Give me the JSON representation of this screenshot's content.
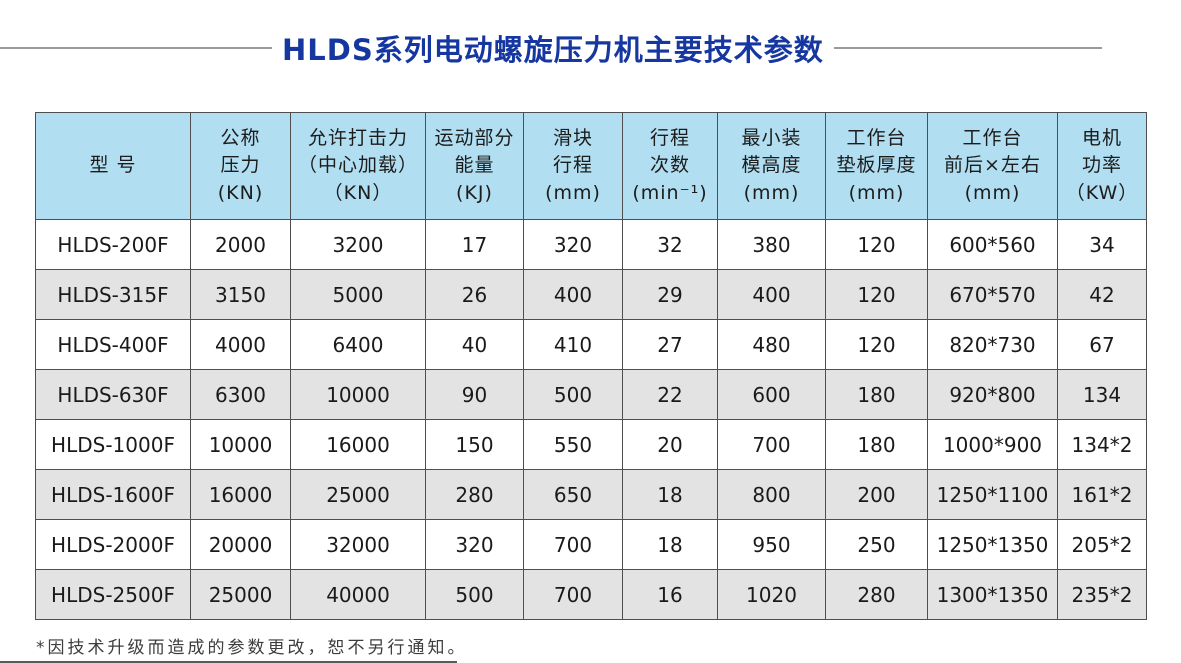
{
  "page": {
    "title": "HLDS系列电动螺旋压力机主要技术参数",
    "footnote": "*因技术升级而造成的参数更改，恕不另行通知。"
  },
  "colors": {
    "title_blue": "#1637a0",
    "header_bg": "#b1def1",
    "row_alt_bg": "#e3e3e3",
    "border": "#4f4f4f",
    "divider_gray": "#9a9a9a"
  },
  "table": {
    "headers": [
      {
        "id": "model",
        "lines": [
          "型 号"
        ]
      },
      {
        "id": "nominal-pressure",
        "lines": [
          "公称",
          "压力",
          "(KN)"
        ]
      },
      {
        "id": "striking-force",
        "lines": [
          "允许打击力",
          "（中心加载）",
          "（KN）"
        ]
      },
      {
        "id": "moving-energy",
        "lines": [
          "运动部分",
          "能量",
          "(KJ)"
        ]
      },
      {
        "id": "slider-stroke",
        "lines": [
          "滑块",
          "行程",
          "(mm)"
        ]
      },
      {
        "id": "stroke-frequency",
        "lines": [
          "行程",
          "次数",
          "(min⁻¹)"
        ]
      },
      {
        "id": "min-die-height",
        "lines": [
          "最小装",
          "模高度",
          "(mm)"
        ]
      },
      {
        "id": "bolster-thickness",
        "lines": [
          "工作台",
          "垫板厚度",
          "(mm)"
        ]
      },
      {
        "id": "table-size",
        "lines": [
          "工作台",
          "前后×左右",
          "(mm)"
        ]
      },
      {
        "id": "motor-power",
        "lines": [
          "电机",
          "功率",
          "（KW）"
        ]
      }
    ],
    "rows": [
      [
        "HLDS-200F",
        "2000",
        "3200",
        "17",
        "320",
        "32",
        "380",
        "120",
        "600*560",
        "34"
      ],
      [
        "HLDS-315F",
        "3150",
        "5000",
        "26",
        "400",
        "29",
        "400",
        "120",
        "670*570",
        "42"
      ],
      [
        "HLDS-400F",
        "4000",
        "6400",
        "40",
        "410",
        "27",
        "480",
        "120",
        "820*730",
        "67"
      ],
      [
        "HLDS-630F",
        "6300",
        "10000",
        "90",
        "500",
        "22",
        "600",
        "180",
        "920*800",
        "134"
      ],
      [
        "HLDS-1000F",
        "10000",
        "16000",
        "150",
        "550",
        "20",
        "700",
        "180",
        "1000*900",
        "134*2"
      ],
      [
        "HLDS-1600F",
        "16000",
        "25000",
        "280",
        "650",
        "18",
        "800",
        "200",
        "1250*1100",
        "161*2"
      ],
      [
        "HLDS-2000F",
        "20000",
        "32000",
        "320",
        "700",
        "18",
        "950",
        "250",
        "1250*1350",
        "205*2"
      ],
      [
        "HLDS-2500F",
        "25000",
        "40000",
        "500",
        "700",
        "16",
        "1020",
        "280",
        "1300*1350",
        "235*2"
      ]
    ]
  }
}
